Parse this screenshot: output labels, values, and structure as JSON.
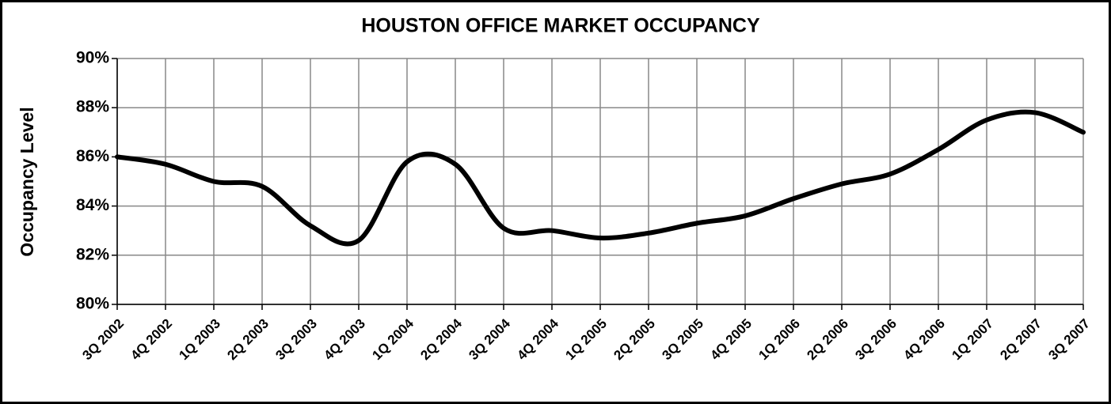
{
  "chart_data": {
    "type": "line",
    "title": "HOUSTON OFFICE MARKET OCCUPANCY",
    "y_label": "Occupancy Level",
    "categories": [
      "3Q 2002",
      "4Q 2002",
      "1Q 2003",
      "2Q 2003",
      "3Q 2003",
      "4Q 2003",
      "1Q 2004",
      "2Q 2004",
      "3Q 2004",
      "4Q 2004",
      "1Q 2005",
      "2Q 2005",
      "3Q 2005",
      "4Q 2005",
      "1Q 2006",
      "2Q 2006",
      "3Q 2006",
      "4Q 2006",
      "1Q 2007",
      "2Q 2007",
      "3Q 2007"
    ],
    "values": [
      86.0,
      85.7,
      85.0,
      84.8,
      83.2,
      82.6,
      85.8,
      85.7,
      83.1,
      83.0,
      82.7,
      82.9,
      83.3,
      83.6,
      84.3,
      84.9,
      85.3,
      86.3,
      87.5,
      87.8,
      87.0
    ],
    "color": "#000000",
    "smooth": true,
    "grid": true,
    "ylim": [
      80,
      90
    ],
    "yticks": [
      {
        "value": 80,
        "label": "80%"
      },
      {
        "value": 82,
        "label": "82%"
      },
      {
        "value": 84,
        "label": "84%"
      },
      {
        "value": 86,
        "label": "86%"
      },
      {
        "value": 88,
        "label": "88%"
      },
      {
        "value": 90,
        "label": "90%"
      }
    ]
  }
}
